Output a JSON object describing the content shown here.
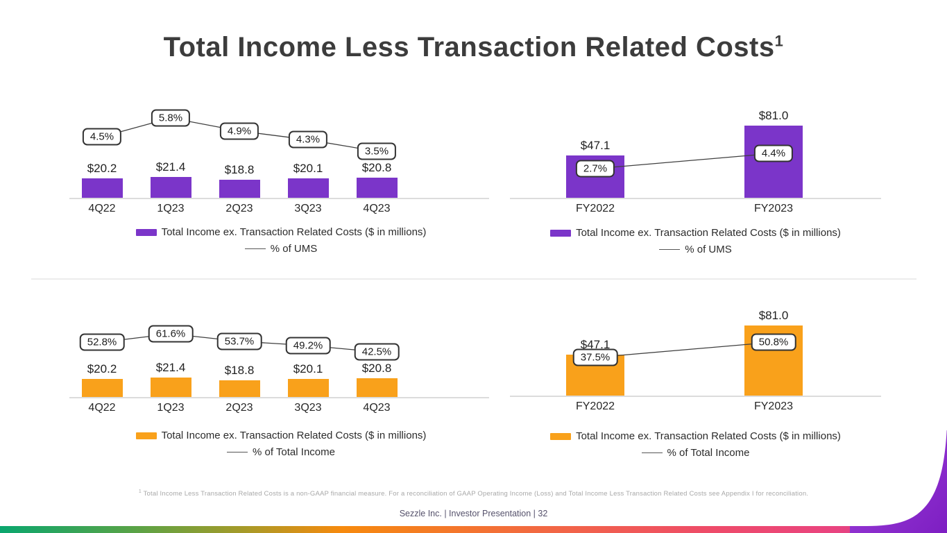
{
  "slide": {
    "title": "Total Income Less Transaction Related Costs",
    "title_sup": "1"
  },
  "footnote": {
    "sup": "1",
    "text": " Total Income Less Transaction Related Costs is a non-GAAP financial measure. For a reconciliation of GAAP Operating Income (Loss) and Total Income Less Transaction Related Costs see Appendix I for reconciliation."
  },
  "footer": {
    "text": "Sezzle Inc. | Investor Presentation | 32"
  },
  "colors": {
    "purple": "#7b35c9",
    "orange": "#f9a11b",
    "trend_line": "#3f3f3f",
    "gradient_left_green": "#0aa66e",
    "gradient_orange": "#f68a0e",
    "gradient_pink": "#e9447f",
    "swoosh_purple": "#8a2bc9"
  },
  "chart_data": [
    {
      "id": "quarterly-purple",
      "type": "bar",
      "categories": [
        "4Q22",
        "1Q23",
        "2Q23",
        "3Q23",
        "4Q23"
      ],
      "series": [
        {
          "name": "Total Income ex. Transaction Related Costs ($ in millions)",
          "type": "bar",
          "color": "#7b35c9",
          "values": [
            20.2,
            21.4,
            18.8,
            20.1,
            20.8
          ],
          "labels": [
            "$20.2",
            "$21.4",
            "$18.8",
            "$20.1",
            "$20.8"
          ]
        },
        {
          "name": "% of UMS",
          "type": "line",
          "values": [
            4.5,
            5.8,
            4.9,
            4.3,
            3.5
          ],
          "labels": [
            "4.5%",
            "5.8%",
            "4.9%",
            "4.3%",
            "3.5%"
          ]
        }
      ],
      "legend_position": "bottom",
      "grid": false
    },
    {
      "id": "annual-purple",
      "type": "bar",
      "categories": [
        "FY2022",
        "FY2023"
      ],
      "series": [
        {
          "name": "Total Income ex. Transaction Related Costs ($ in millions)",
          "type": "bar",
          "color": "#7b35c9",
          "values": [
            47.1,
            81.0
          ],
          "labels": [
            "$47.1",
            "$81.0"
          ]
        },
        {
          "name": "% of UMS",
          "type": "line",
          "values": [
            2.7,
            4.4
          ],
          "labels": [
            "2.7%",
            "4.4%"
          ]
        }
      ],
      "legend_position": "bottom",
      "grid": false
    },
    {
      "id": "quarterly-orange",
      "type": "bar",
      "categories": [
        "4Q22",
        "1Q23",
        "2Q23",
        "3Q23",
        "4Q23"
      ],
      "series": [
        {
          "name": "Total Income ex. Transaction Related Costs ($ in millions)",
          "type": "bar",
          "color": "#f9a11b",
          "values": [
            20.2,
            21.4,
            18.8,
            20.1,
            20.8
          ],
          "labels": [
            "$20.2",
            "$21.4",
            "$18.8",
            "$20.1",
            "$20.8"
          ]
        },
        {
          "name": "% of Total Income",
          "type": "line",
          "values": [
            52.8,
            61.6,
            53.7,
            49.2,
            42.5
          ],
          "labels": [
            "52.8%",
            "61.6%",
            "53.7%",
            "49.2%",
            "42.5%"
          ]
        }
      ],
      "legend_position": "bottom",
      "grid": false
    },
    {
      "id": "annual-orange",
      "type": "bar",
      "categories": [
        "FY2022",
        "FY2023"
      ],
      "series": [
        {
          "name": "Total Income ex. Transaction Related Costs ($ in millions)",
          "type": "bar",
          "color": "#f9a11b",
          "values": [
            47.1,
            81.0
          ],
          "labels": [
            "$47.1",
            "$81.0"
          ]
        },
        {
          "name": "% of Total Income",
          "type": "line",
          "values": [
            37.5,
            50.8
          ],
          "labels": [
            "37.5%",
            "50.8%"
          ]
        }
      ],
      "legend_position": "bottom",
      "grid": false
    }
  ]
}
